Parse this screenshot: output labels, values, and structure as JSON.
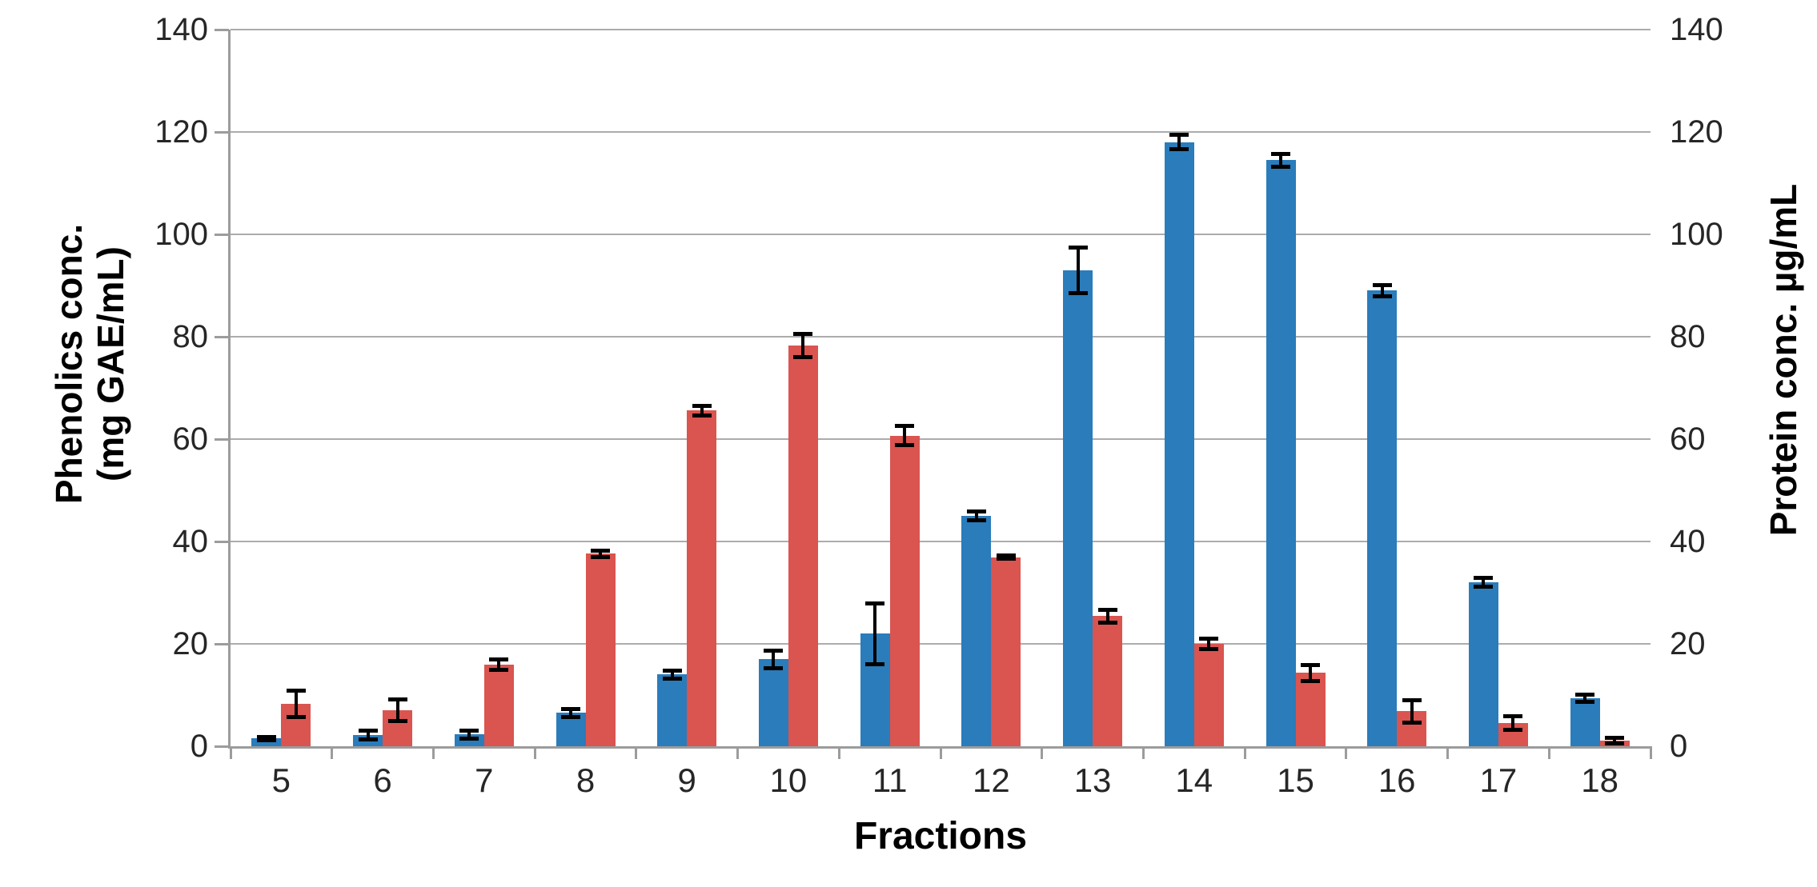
{
  "chart_data": {
    "type": "bar",
    "title": "",
    "categories": [
      "5",
      "6",
      "7",
      "8",
      "9",
      "10",
      "11",
      "12",
      "13",
      "14",
      "15",
      "16",
      "17",
      "18"
    ],
    "series": [
      {
        "id": "blue-bars",
        "axis": "left",
        "color": "#2A7CBB",
        "values": [
          1.5,
          2.2,
          2.3,
          6.5,
          14,
          17,
          22,
          45,
          93,
          118,
          114.5,
          89,
          32,
          9.4
        ],
        "errors": [
          0.4,
          0.9,
          0.9,
          0.8,
          0.9,
          1.8,
          6,
          0.9,
          4.5,
          1.5,
          1.3,
          1.2,
          0.9,
          0.8
        ]
      },
      {
        "id": "red-bars",
        "axis": "right",
        "color": "#DA5450",
        "values": [
          8.3,
          7,
          16,
          37.6,
          65.6,
          78.3,
          60.7,
          36.9,
          25.4,
          20,
          14.3,
          6.8,
          4.5,
          1.1
        ],
        "errors": [
          2.6,
          2.2,
          1.1,
          0.7,
          1,
          2.3,
          1.9,
          0.4,
          1.3,
          1.1,
          1.6,
          2.3,
          1.4,
          0.6
        ]
      }
    ],
    "xlabel": "Fractions",
    "left_axis": {
      "title_lines": [
        "Phenolics conc.",
        "(mg GAE/mL)"
      ],
      "min": 0,
      "max": 140,
      "step": 20
    },
    "right_axis": {
      "title": "Protein conc. µg/mL",
      "min": 0,
      "max": 140,
      "step": 20
    },
    "grid": true,
    "legend": "none",
    "colors": {
      "gridline": "#ACACAC",
      "axis_line": "#9C9C9C",
      "tick_label": "#262626",
      "error_bar": "#000000"
    }
  }
}
